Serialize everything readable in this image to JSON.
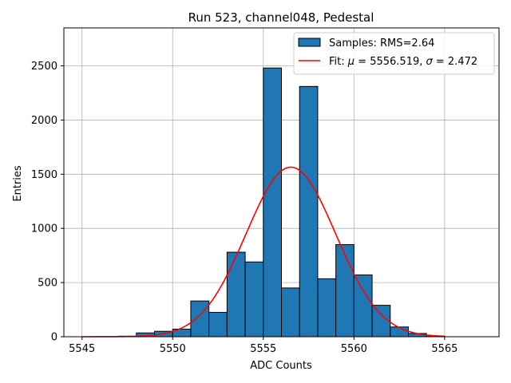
{
  "chart_data": {
    "type": "bar",
    "title": "Run 523, channel048, Pedestal",
    "xlabel": "ADC Counts",
    "ylabel": "Entries",
    "xlim": [
      5544,
      5568
    ],
    "ylim": [
      0,
      2850
    ],
    "xticks": [
      5545,
      5550,
      5555,
      5560,
      5565
    ],
    "yticks": [
      0,
      500,
      1000,
      1500,
      2000,
      2500
    ],
    "grid": true,
    "legend_position": "top-right",
    "bin_width": 1,
    "bins": [
      {
        "x": 5545,
        "value": 0
      },
      {
        "x": 5546,
        "value": 0
      },
      {
        "x": 5547,
        "value": 5
      },
      {
        "x": 5548,
        "value": 35
      },
      {
        "x": 5549,
        "value": 50
      },
      {
        "x": 5550,
        "value": 70
      },
      {
        "x": 5551,
        "value": 330
      },
      {
        "x": 5552,
        "value": 225
      },
      {
        "x": 5553,
        "value": 780
      },
      {
        "x": 5554,
        "value": 690
      },
      {
        "x": 5555,
        "value": 2480
      },
      {
        "x": 5556,
        "value": 450
      },
      {
        "x": 5557,
        "value": 2310
      },
      {
        "x": 5558,
        "value": 535
      },
      {
        "x": 5559,
        "value": 850
      },
      {
        "x": 5560,
        "value": 570
      },
      {
        "x": 5561,
        "value": 290
      },
      {
        "x": 5562,
        "value": 90
      },
      {
        "x": 5563,
        "value": 30
      },
      {
        "x": 5564,
        "value": 5
      }
    ],
    "fit": {
      "mu": 5556.519,
      "sigma": 2.472,
      "peak": 1565,
      "x_range": [
        5545,
        5565
      ]
    },
    "series": [
      {
        "name": "Samples: RMS=2.64",
        "kind": "histogram",
        "color": "#1f77b4",
        "edge_color": "#000000"
      },
      {
        "name": "Fit: μ = 5556.519, σ = 2.472",
        "kind": "line",
        "color": "#ff0000"
      }
    ]
  },
  "legend": {
    "samples_label": "Samples: RMS=2.64",
    "fit_label_prefix": "Fit: ",
    "fit_mu_symbol": "μ",
    "fit_mu_value": " = 5556.519, ",
    "fit_sigma_symbol": "σ",
    "fit_sigma_value": " = 2.472"
  }
}
